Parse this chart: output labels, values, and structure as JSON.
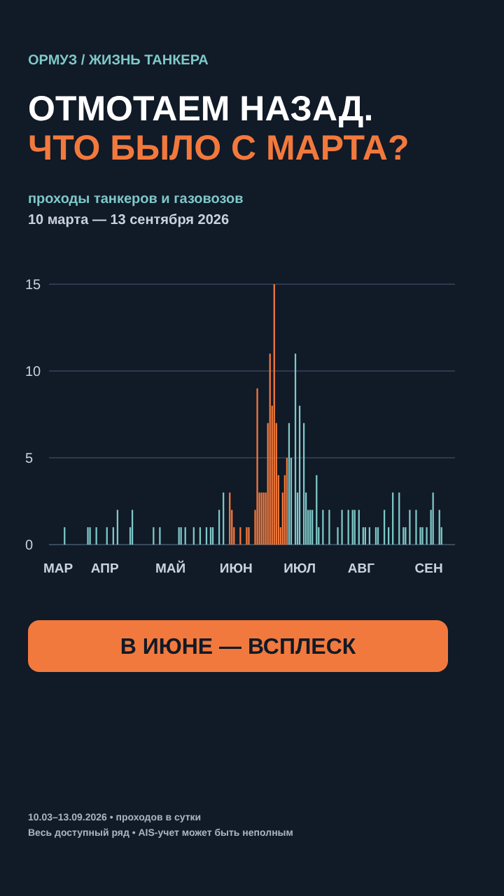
{
  "chart_data": {
    "type": "bar",
    "title": "ОТМОТАЕМ НАЗАД.\nЧТО БЫЛО С МАРТА?",
    "subtitle": "проходы танкеров и газовозов",
    "annotations": [
      "ОРМУЗ / ЖИЗНЬ ТАНКЕРА",
      "10 марта — 13 сентября 2026",
      "В ИЮНЕ — ВСПЛЕСК",
      "10.03–13.09.2026 • проходов в сутки",
      "Весь доступный ряд • AIS-учет может быть неполным"
    ],
    "categories": [
      null,
      null,
      "МАР",
      null,
      null,
      null,
      null,
      null,
      null,
      null,
      null,
      null,
      null,
      null,
      null,
      null,
      null,
      null,
      null,
      null,
      null,
      null,
      null,
      null,
      "АПР",
      null,
      null,
      null,
      null,
      null,
      null,
      null,
      null,
      null,
      null,
      null,
      null,
      null,
      null,
      null,
      null,
      null,
      null,
      null,
      null,
      null,
      null,
      null,
      null,
      null,
      null,
      null,
      null,
      null,
      null,
      "МАЙ",
      null,
      null,
      null,
      null,
      null,
      null,
      null,
      null,
      null,
      null,
      null,
      null,
      null,
      null,
      null,
      null,
      null,
      null,
      null,
      null,
      null,
      null,
      null,
      null,
      null,
      null,
      null,
      null,
      null,
      null,
      "ИЮН",
      null,
      null,
      null,
      null,
      null,
      null,
      null,
      null,
      null,
      null,
      null,
      null,
      null,
      null,
      null,
      null,
      null,
      null,
      null,
      null,
      null,
      null,
      null,
      null,
      null,
      null,
      null,
      null,
      null,
      "ИЮЛ",
      null,
      null,
      null,
      null,
      null,
      null,
      null,
      null,
      null,
      null,
      null,
      null,
      null,
      null,
      null,
      null,
      null,
      null,
      null,
      null,
      null,
      null,
      null,
      null,
      null,
      null,
      null,
      null,
      "АВГ",
      null,
      null,
      null,
      null,
      null,
      null,
      null,
      null,
      null,
      null,
      null,
      null,
      null,
      null,
      null,
      null,
      null,
      null,
      null,
      null,
      null,
      null,
      null,
      null,
      null,
      null,
      null,
      null,
      null,
      null,
      null,
      "СЕН",
      null,
      null,
      null,
      null,
      null,
      null,
      null,
      null,
      null,
      null
    ],
    "ylim": [
      0,
      15
    ],
    "yticks": [
      0,
      5,
      10,
      15
    ],
    "grid": "y",
    "series": [
      {
        "color": "#7ec8c8",
        "values": [
          0,
          0,
          0,
          0,
          0,
          1,
          0,
          0,
          0,
          0,
          0,
          0,
          0,
          0,
          0,
          0,
          1,
          1,
          0,
          0,
          1,
          0,
          0,
          0,
          0,
          1,
          0,
          0,
          1,
          0,
          2,
          0,
          0,
          0,
          0,
          0,
          1,
          2,
          0,
          0,
          0,
          0,
          0,
          0,
          0,
          0,
          0,
          1,
          0,
          0,
          1,
          0,
          0,
          0,
          0,
          0,
          0,
          0,
          0,
          1,
          1,
          0,
          1,
          0,
          0,
          0,
          1,
          0,
          0,
          1,
          0,
          0,
          1,
          0,
          1,
          1,
          0,
          0,
          2,
          0,
          3,
          0,
          0,
          null,
          null,
          null,
          null,
          null,
          null,
          null,
          null,
          null,
          null,
          null,
          null,
          null,
          null,
          null,
          null,
          null,
          null,
          null,
          null,
          null,
          null,
          null,
          null,
          null,
          null,
          null,
          null,
          7,
          5,
          0,
          11,
          3,
          8,
          0,
          7,
          3,
          2,
          2,
          2,
          0,
          4,
          1,
          0,
          2,
          0,
          0,
          2,
          0,
          0,
          0,
          1,
          0,
          2,
          0,
          0,
          2,
          0,
          2,
          2,
          0,
          2,
          0,
          1,
          1,
          0,
          1,
          0,
          0,
          1,
          1,
          0,
          0,
          2,
          0,
          1,
          0,
          3,
          0,
          0,
          3,
          0,
          1,
          1,
          0,
          2,
          0,
          0,
          2,
          0,
          1,
          1,
          0,
          1,
          0,
          2,
          3,
          0,
          0,
          2,
          1,
          0,
          0,
          0,
          0
        ]
      },
      {
        "color": "#f2793d",
        "values": [
          null,
          null,
          null,
          null,
          null,
          null,
          null,
          null,
          null,
          null,
          null,
          null,
          null,
          null,
          null,
          null,
          null,
          null,
          null,
          null,
          null,
          null,
          null,
          null,
          null,
          null,
          null,
          null,
          null,
          null,
          null,
          null,
          null,
          null,
          null,
          null,
          null,
          null,
          null,
          null,
          null,
          null,
          null,
          null,
          null,
          null,
          null,
          null,
          null,
          null,
          null,
          null,
          null,
          null,
          null,
          null,
          null,
          null,
          null,
          null,
          null,
          null,
          null,
          null,
          null,
          null,
          null,
          null,
          null,
          null,
          null,
          null,
          null,
          null,
          null,
          null,
          null,
          null,
          null,
          null,
          null,
          null,
          null,
          3,
          2,
          1,
          0,
          0,
          1,
          0,
          0,
          1,
          1,
          0,
          0,
          2,
          9,
          3,
          3,
          3,
          3,
          7,
          11,
          8,
          15,
          7,
          4,
          1,
          3,
          4,
          5,
          null,
          null,
          null,
          null,
          null,
          null,
          null,
          null,
          null,
          null,
          null,
          null,
          null,
          null,
          null,
          null,
          null,
          null,
          null,
          null,
          null,
          null,
          null,
          null,
          null,
          null,
          null,
          null,
          null,
          null,
          null,
          null,
          null,
          null,
          null,
          null,
          null,
          null,
          null,
          null,
          null,
          null,
          null,
          null,
          null,
          null,
          null,
          null,
          null,
          null,
          null,
          null,
          null,
          null,
          null,
          null,
          null,
          null,
          null,
          null,
          null,
          null,
          null,
          null,
          null,
          null,
          null,
          null,
          null,
          null,
          null,
          null,
          null,
          null,
          null,
          null,
          null
        ]
      }
    ]
  }
}
